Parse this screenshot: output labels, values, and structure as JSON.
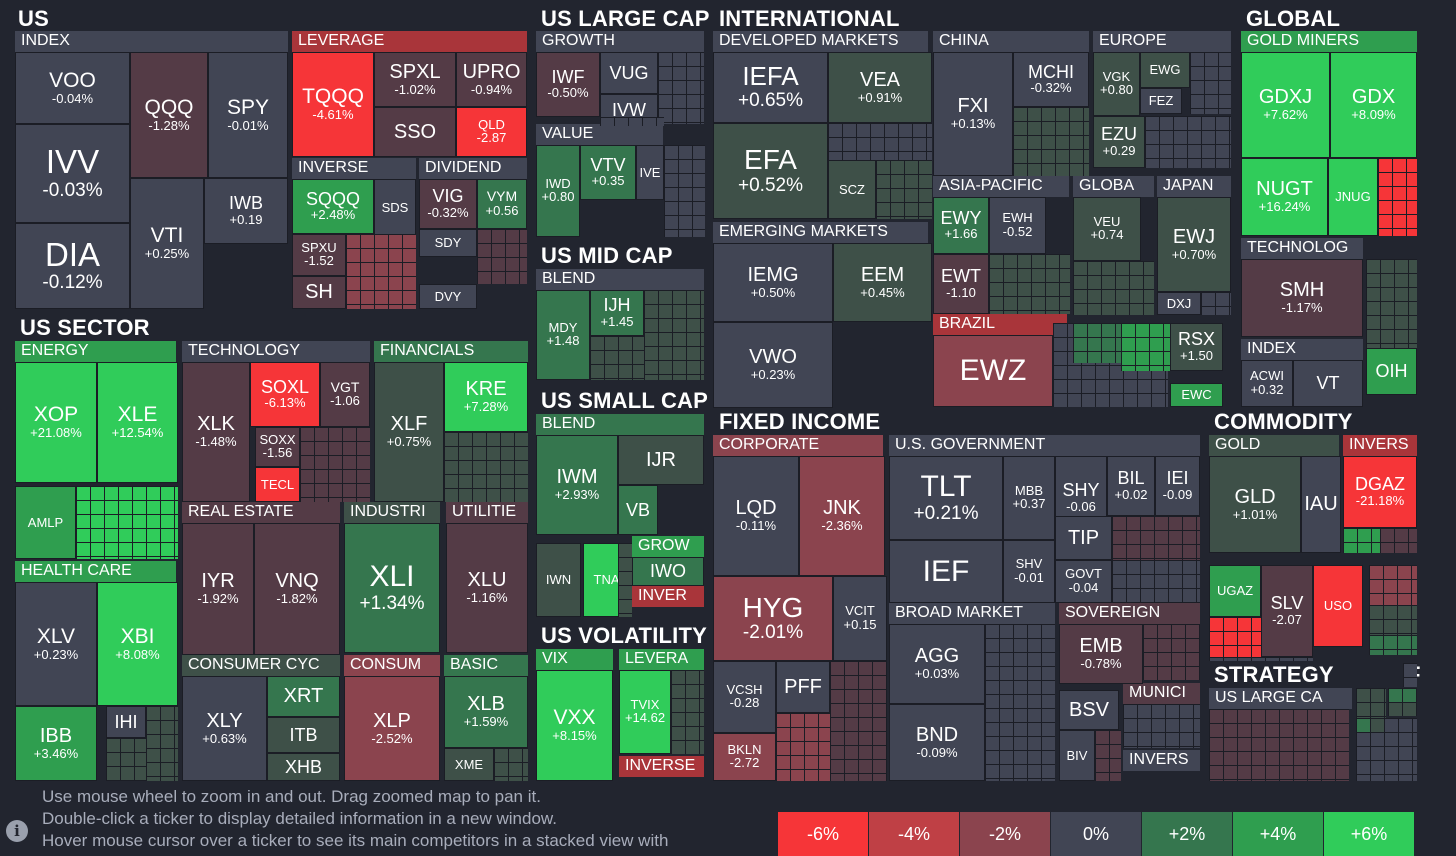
{
  "colors": {
    "gs": "#30cc5a",
    "gm": "#2f9e4f",
    "gw": "#35764e",
    "gn": "#3e5048",
    "n": "#414554",
    "rn": "#543b46",
    "rw": "#8b444e",
    "rs": "#f63538",
    "header_red": "#a9353a",
    "header_green": "#2f9e4f",
    "header_neutral": "#414554"
  },
  "sections": [
    {
      "id": "us",
      "label": "US"
    },
    {
      "id": "us-large-cap",
      "label": "US LARGE CAP"
    },
    {
      "id": "international",
      "label": "INTERNATIONAL"
    },
    {
      "id": "global",
      "label": "GLOBAL"
    },
    {
      "id": "us-sector",
      "label": "US SECTOR"
    },
    {
      "id": "us-mid-cap",
      "label": "US MID CAP"
    },
    {
      "id": "us-small-cap",
      "label": "US SMALL CAP"
    },
    {
      "id": "us-volatility",
      "label": "US VOLATILITY"
    },
    {
      "id": "fixed-income",
      "label": "FIXED INCOME"
    },
    {
      "id": "commodity",
      "label": "COMMODITY"
    },
    {
      "id": "strategy",
      "label": "STRATEGY"
    },
    {
      "id": "f-partial",
      "label": "F"
    }
  ],
  "groups": [
    {
      "id": "index",
      "label": "INDEX"
    },
    {
      "id": "leverage",
      "label": "LEVERAGE"
    },
    {
      "id": "inverse",
      "label": "INVERSE"
    },
    {
      "id": "dividend",
      "label": "DIVIDEND"
    },
    {
      "id": "growth",
      "label": "GROWTH"
    },
    {
      "id": "value",
      "label": "VALUE"
    },
    {
      "id": "developed-markets",
      "label": "DEVELOPED MARKETS"
    },
    {
      "id": "china",
      "label": "CHINA"
    },
    {
      "id": "europe",
      "label": "EUROPE"
    },
    {
      "id": "gold-miners",
      "label": "GOLD MINERS"
    },
    {
      "id": "asia-pacific",
      "label": "ASIA-PACIFIC"
    },
    {
      "id": "globa",
      "label": "GLOBA"
    },
    {
      "id": "japan",
      "label": "JAPAN"
    },
    {
      "id": "emerging-markets",
      "label": "EMERGING MARKETS"
    },
    {
      "id": "technolog",
      "label": "TECHNOLOG"
    },
    {
      "id": "mid-blend",
      "label": "BLEND"
    },
    {
      "id": "brazil",
      "label": "BRAZIL"
    },
    {
      "id": "global-index",
      "label": "INDEX"
    },
    {
      "id": "energy",
      "label": "ENERGY"
    },
    {
      "id": "technology",
      "label": "TECHNOLOGY"
    },
    {
      "id": "financials",
      "label": "FINANCIALS"
    },
    {
      "id": "small-blend",
      "label": "BLEND"
    },
    {
      "id": "corporate",
      "label": "CORPORATE"
    },
    {
      "id": "us-government",
      "label": "U.S. GOVERNMENT"
    },
    {
      "id": "gold",
      "label": "GOLD"
    },
    {
      "id": "invers-commodity",
      "label": "INVERS"
    },
    {
      "id": "real-estate",
      "label": "REAL ESTATE"
    },
    {
      "id": "industri",
      "label": "INDUSTRI"
    },
    {
      "id": "utilitie",
      "label": "UTILITIE"
    },
    {
      "id": "health-care",
      "label": "HEALTH CARE"
    },
    {
      "id": "grow",
      "label": "GROW"
    },
    {
      "id": "inver",
      "label": "INVER"
    },
    {
      "id": "broad-market",
      "label": "BROAD MARKET"
    },
    {
      "id": "sovereign",
      "label": "SOVEREIGN"
    },
    {
      "id": "vix",
      "label": "VIX"
    },
    {
      "id": "levera",
      "label": "LEVERA"
    },
    {
      "id": "consumer-cyc",
      "label": "CONSUMER CYC"
    },
    {
      "id": "consum",
      "label": "CONSUM"
    },
    {
      "id": "basic",
      "label": "BASIC"
    },
    {
      "id": "strategy-us-large-ca",
      "label": "US LARGE CA"
    },
    {
      "id": "munici",
      "label": "MUNICI"
    },
    {
      "id": "inverse-vol",
      "label": "INVERSE"
    },
    {
      "id": "invers-fixed",
      "label": "INVERS"
    }
  ],
  "tiles": [
    {
      "t": "VOO",
      "c": "-0.04%"
    },
    {
      "t": "IVV",
      "c": "-0.03%"
    },
    {
      "t": "DIA",
      "c": "-0.12%"
    },
    {
      "t": "QQQ",
      "c": "-1.28%"
    },
    {
      "t": "SPY",
      "c": "-0.01%"
    },
    {
      "t": "VTI",
      "c": "+0.25%"
    },
    {
      "t": "IWB",
      "c": "+0.19"
    },
    {
      "t": "TQQQ",
      "c": "-4.61%"
    },
    {
      "t": "SPXL",
      "c": "-1.02%"
    },
    {
      "t": "UPRO",
      "c": "-0.94%"
    },
    {
      "t": "SSO",
      "c": ""
    },
    {
      "t": "QLD",
      "c": "-2.87"
    },
    {
      "t": "SQQQ",
      "c": "+2.48%"
    },
    {
      "t": "SDS",
      "c": ""
    },
    {
      "t": "SPXU",
      "c": "-1.52"
    },
    {
      "t": "SH",
      "c": ""
    },
    {
      "t": "VIG",
      "c": "-0.32%"
    },
    {
      "t": "VYM",
      "c": "+0.56"
    },
    {
      "t": "SDY",
      "c": ""
    },
    {
      "t": "DVY",
      "c": ""
    },
    {
      "t": "IWF",
      "c": "-0.50%"
    },
    {
      "t": "VUG",
      "c": ""
    },
    {
      "t": "IVW",
      "c": ""
    },
    {
      "t": "IWD",
      "c": "+0.80"
    },
    {
      "t": "VTV",
      "c": "+0.35"
    },
    {
      "t": "IVE",
      "c": ""
    },
    {
      "t": "MDY",
      "c": "+1.48"
    },
    {
      "t": "IJH",
      "c": "+1.45"
    },
    {
      "t": "IWM",
      "c": "+2.93%"
    },
    {
      "t": "IJR",
      "c": ""
    },
    {
      "t": "VB",
      "c": ""
    },
    {
      "t": "IWN",
      "c": ""
    },
    {
      "t": "TNA",
      "c": ""
    },
    {
      "t": "IWO",
      "c": ""
    },
    {
      "t": "VXX",
      "c": "+8.15%"
    },
    {
      "t": "TVIX",
      "c": "+14.62"
    },
    {
      "t": "IEFA",
      "c": "+0.65%"
    },
    {
      "t": "VEA",
      "c": "+0.91%"
    },
    {
      "t": "EFA",
      "c": "+0.52%"
    },
    {
      "t": "SCZ",
      "c": ""
    },
    {
      "t": "IEMG",
      "c": "+0.50%"
    },
    {
      "t": "EEM",
      "c": "+0.45%"
    },
    {
      "t": "VWO",
      "c": "+0.23%"
    },
    {
      "t": "FXI",
      "c": "+0.13%"
    },
    {
      "t": "MCHI",
      "c": "-0.32%"
    },
    {
      "t": "VGK",
      "c": "+0.80"
    },
    {
      "t": "EWG",
      "c": ""
    },
    {
      "t": "FEZ",
      "c": ""
    },
    {
      "t": "EZU",
      "c": "+0.29"
    },
    {
      "t": "EWY",
      "c": "+1.66"
    },
    {
      "t": "EWH",
      "c": "-0.52"
    },
    {
      "t": "EWT",
      "c": "-1.10"
    },
    {
      "t": "VEU",
      "c": "+0.74"
    },
    {
      "t": "EWJ",
      "c": "+0.70%"
    },
    {
      "t": "DXJ",
      "c": ""
    },
    {
      "t": "EWZ",
      "c": ""
    },
    {
      "t": "RSX",
      "c": "+1.50"
    },
    {
      "t": "EWC",
      "c": ""
    },
    {
      "t": "GDXJ",
      "c": "+7.62%"
    },
    {
      "t": "GDX",
      "c": "+8.09%"
    },
    {
      "t": "NUGT",
      "c": "+16.24%"
    },
    {
      "t": "JNUG",
      "c": ""
    },
    {
      "t": "SMH",
      "c": "-1.17%"
    },
    {
      "t": "ACWI",
      "c": "+0.32"
    },
    {
      "t": "VT",
      "c": ""
    },
    {
      "t": "OIH",
      "c": ""
    },
    {
      "t": "XOP",
      "c": "+21.08%"
    },
    {
      "t": "XLE",
      "c": "+12.54%"
    },
    {
      "t": "AMLP",
      "c": ""
    },
    {
      "t": "XLK",
      "c": "-1.48%"
    },
    {
      "t": "SOXL",
      "c": "-6.13%"
    },
    {
      "t": "VGT",
      "c": "-1.06"
    },
    {
      "t": "SOXX",
      "c": "-1.56"
    },
    {
      "t": "TECL",
      "c": ""
    },
    {
      "t": "XLF",
      "c": "+0.75%"
    },
    {
      "t": "KRE",
      "c": "+7.28%"
    },
    {
      "t": "XLV",
      "c": "+0.23%"
    },
    {
      "t": "XBI",
      "c": "+8.08%"
    },
    {
      "t": "IBB",
      "c": "+3.46%"
    },
    {
      "t": "IHI",
      "c": ""
    },
    {
      "t": "IYR",
      "c": "-1.92%"
    },
    {
      "t": "VNQ",
      "c": "-1.82%"
    },
    {
      "t": "XLI",
      "c": "+1.34%"
    },
    {
      "t": "XLU",
      "c": "-1.16%"
    },
    {
      "t": "XLY",
      "c": "+0.63%"
    },
    {
      "t": "XRT",
      "c": ""
    },
    {
      "t": "ITB",
      "c": ""
    },
    {
      "t": "XHB",
      "c": ""
    },
    {
      "t": "XLP",
      "c": "-2.52%"
    },
    {
      "t": "XLB",
      "c": "+1.59%"
    },
    {
      "t": "XME",
      "c": ""
    },
    {
      "t": "LQD",
      "c": "-0.11%"
    },
    {
      "t": "JNK",
      "c": "-2.36%"
    },
    {
      "t": "HYG",
      "c": "-2.01%"
    },
    {
      "t": "VCIT",
      "c": "+0.15"
    },
    {
      "t": "VCSH",
      "c": "-0.28"
    },
    {
      "t": "PFF",
      "c": ""
    },
    {
      "t": "BKLN",
      "c": "-2.72"
    },
    {
      "t": "TLT",
      "c": "+0.21%"
    },
    {
      "t": "MBB",
      "c": "+0.37"
    },
    {
      "t": "SHY",
      "c": "-0.06"
    },
    {
      "t": "BIL",
      "c": "+0.02"
    },
    {
      "t": "IEI",
      "c": "-0.09"
    },
    {
      "t": "TIP",
      "c": ""
    },
    {
      "t": "IEF",
      "c": ""
    },
    {
      "t": "SHV",
      "c": "-0.01"
    },
    {
      "t": "GOVT",
      "c": "-0.04"
    },
    {
      "t": "AGG",
      "c": "+0.03%"
    },
    {
      "t": "BND",
      "c": "-0.09%"
    },
    {
      "t": "EMB",
      "c": "-0.78%"
    },
    {
      "t": "BSV",
      "c": ""
    },
    {
      "t": "BIV",
      "c": ""
    },
    {
      "t": "GLD",
      "c": "+1.01%"
    },
    {
      "t": "IAU",
      "c": ""
    },
    {
      "t": "DGAZ",
      "c": "-21.18%"
    },
    {
      "t": "UGAZ",
      "c": ""
    },
    {
      "t": "SLV",
      "c": "-2.07"
    },
    {
      "t": "USO",
      "c": ""
    }
  ],
  "info": {
    "line1": "Use mouse wheel to zoom in and out. Drag zoomed map to pan it.",
    "line2": "Double-click a ticker to display detailed information in a new window.",
    "line3": "Hover mouse cursor over a ticker to see its main competitors in a stacked view with",
    "icon": "info-icon"
  },
  "legend": [
    {
      "label": "-6%",
      "color": "#f63538"
    },
    {
      "label": "-4%",
      "color": "#bf4045"
    },
    {
      "label": "-2%",
      "color": "#8b444e"
    },
    {
      "label": "0%",
      "color": "#414554"
    },
    {
      "label": "+2%",
      "color": "#35764e"
    },
    {
      "label": "+4%",
      "color": "#2f9e4f"
    },
    {
      "label": "+6%",
      "color": "#30cc5a"
    }
  ]
}
